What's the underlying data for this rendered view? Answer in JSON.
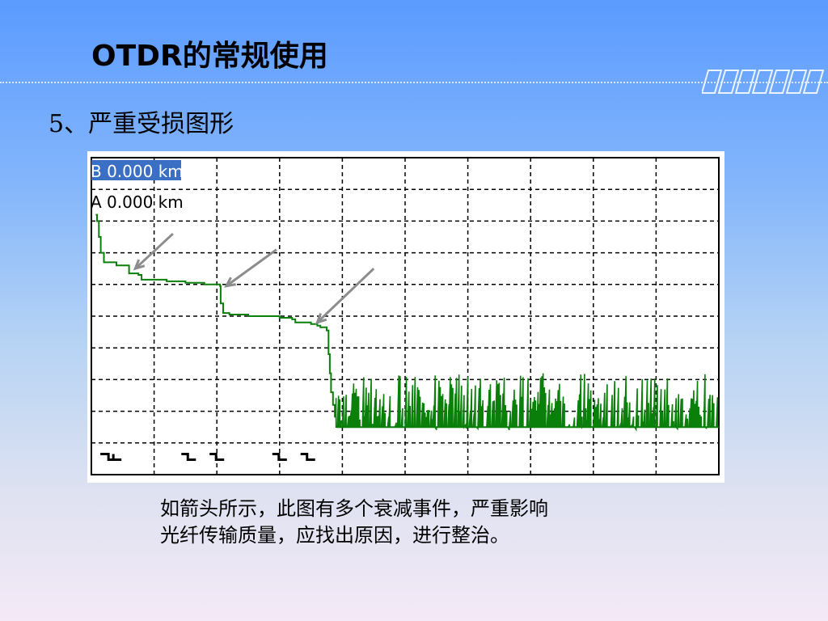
{
  "slide": {
    "title": "OTDR的常规使用",
    "subtitle": "5、严重受损图形",
    "caption_lines": [
      "如箭头所示，此图有多个衰减事件，严重影响",
      "光纤传输质量，应找出原因，进行整治。"
    ]
  },
  "colors": {
    "trace": "#0a7f0a",
    "arrow": "#8c8c8c",
    "cursor_highlight": "#3a6fc4",
    "grid": "#000000"
  },
  "chart_data": {
    "type": "line",
    "title": "",
    "xlabel": "",
    "ylabel": "",
    "xlim": [
      0,
      10
    ],
    "ylim": [
      0,
      10
    ],
    "y_inverted": true,
    "grid": true,
    "grid_divisions": {
      "x": 10,
      "y": 10
    },
    "cursor_labels": [
      {
        "text": "B 0.000 km",
        "highlighted": true
      },
      {
        "text": "A 0.000 km",
        "highlighted": false
      }
    ],
    "series": [
      {
        "x": [
          0.07,
          0.09,
          0.12,
          0.15,
          0.2,
          0.4,
          0.55,
          0.6,
          0.75,
          0.8,
          1.2,
          1.5,
          1.8,
          2.05,
          2.06,
          2.1,
          2.2,
          2.5,
          3.0,
          3.2,
          3.25,
          3.5,
          3.6,
          3.65,
          3.75,
          3.78,
          3.8,
          3.82,
          3.85,
          3.88
        ],
        "y": [
          1.8,
          2.0,
          2.5,
          3.0,
          3.3,
          3.4,
          3.4,
          3.65,
          3.7,
          3.85,
          3.9,
          3.95,
          4.0,
          4.05,
          4.6,
          4.9,
          4.95,
          5.0,
          5.05,
          5.1,
          5.2,
          5.25,
          5.3,
          5.35,
          5.45,
          6.2,
          6.8,
          7.4,
          7.8,
          8.2
        ]
      }
    ],
    "noise_floor": {
      "x_start": 3.9,
      "x_end": 10.0,
      "y_floor": 8.5,
      "y_peak_min": 6.8,
      "y_peak_max": 8.2
    },
    "event_markers": [
      {
        "type": "double",
        "x": 0.35
      },
      {
        "type": "single",
        "x": 1.55
      },
      {
        "type": "single",
        "x": 2.0
      },
      {
        "type": "single",
        "x": 3.0
      },
      {
        "type": "single",
        "x": 3.45
      }
    ],
    "annotation_arrows": [
      {
        "from_x": 1.3,
        "from_y": 2.4,
        "to_x": 0.7,
        "to_y": 3.5
      },
      {
        "from_x": 2.95,
        "from_y": 2.9,
        "to_x": 2.15,
        "to_y": 4.05
      },
      {
        "from_x": 4.5,
        "from_y": 3.5,
        "to_x": 3.6,
        "to_y": 5.2
      }
    ]
  }
}
